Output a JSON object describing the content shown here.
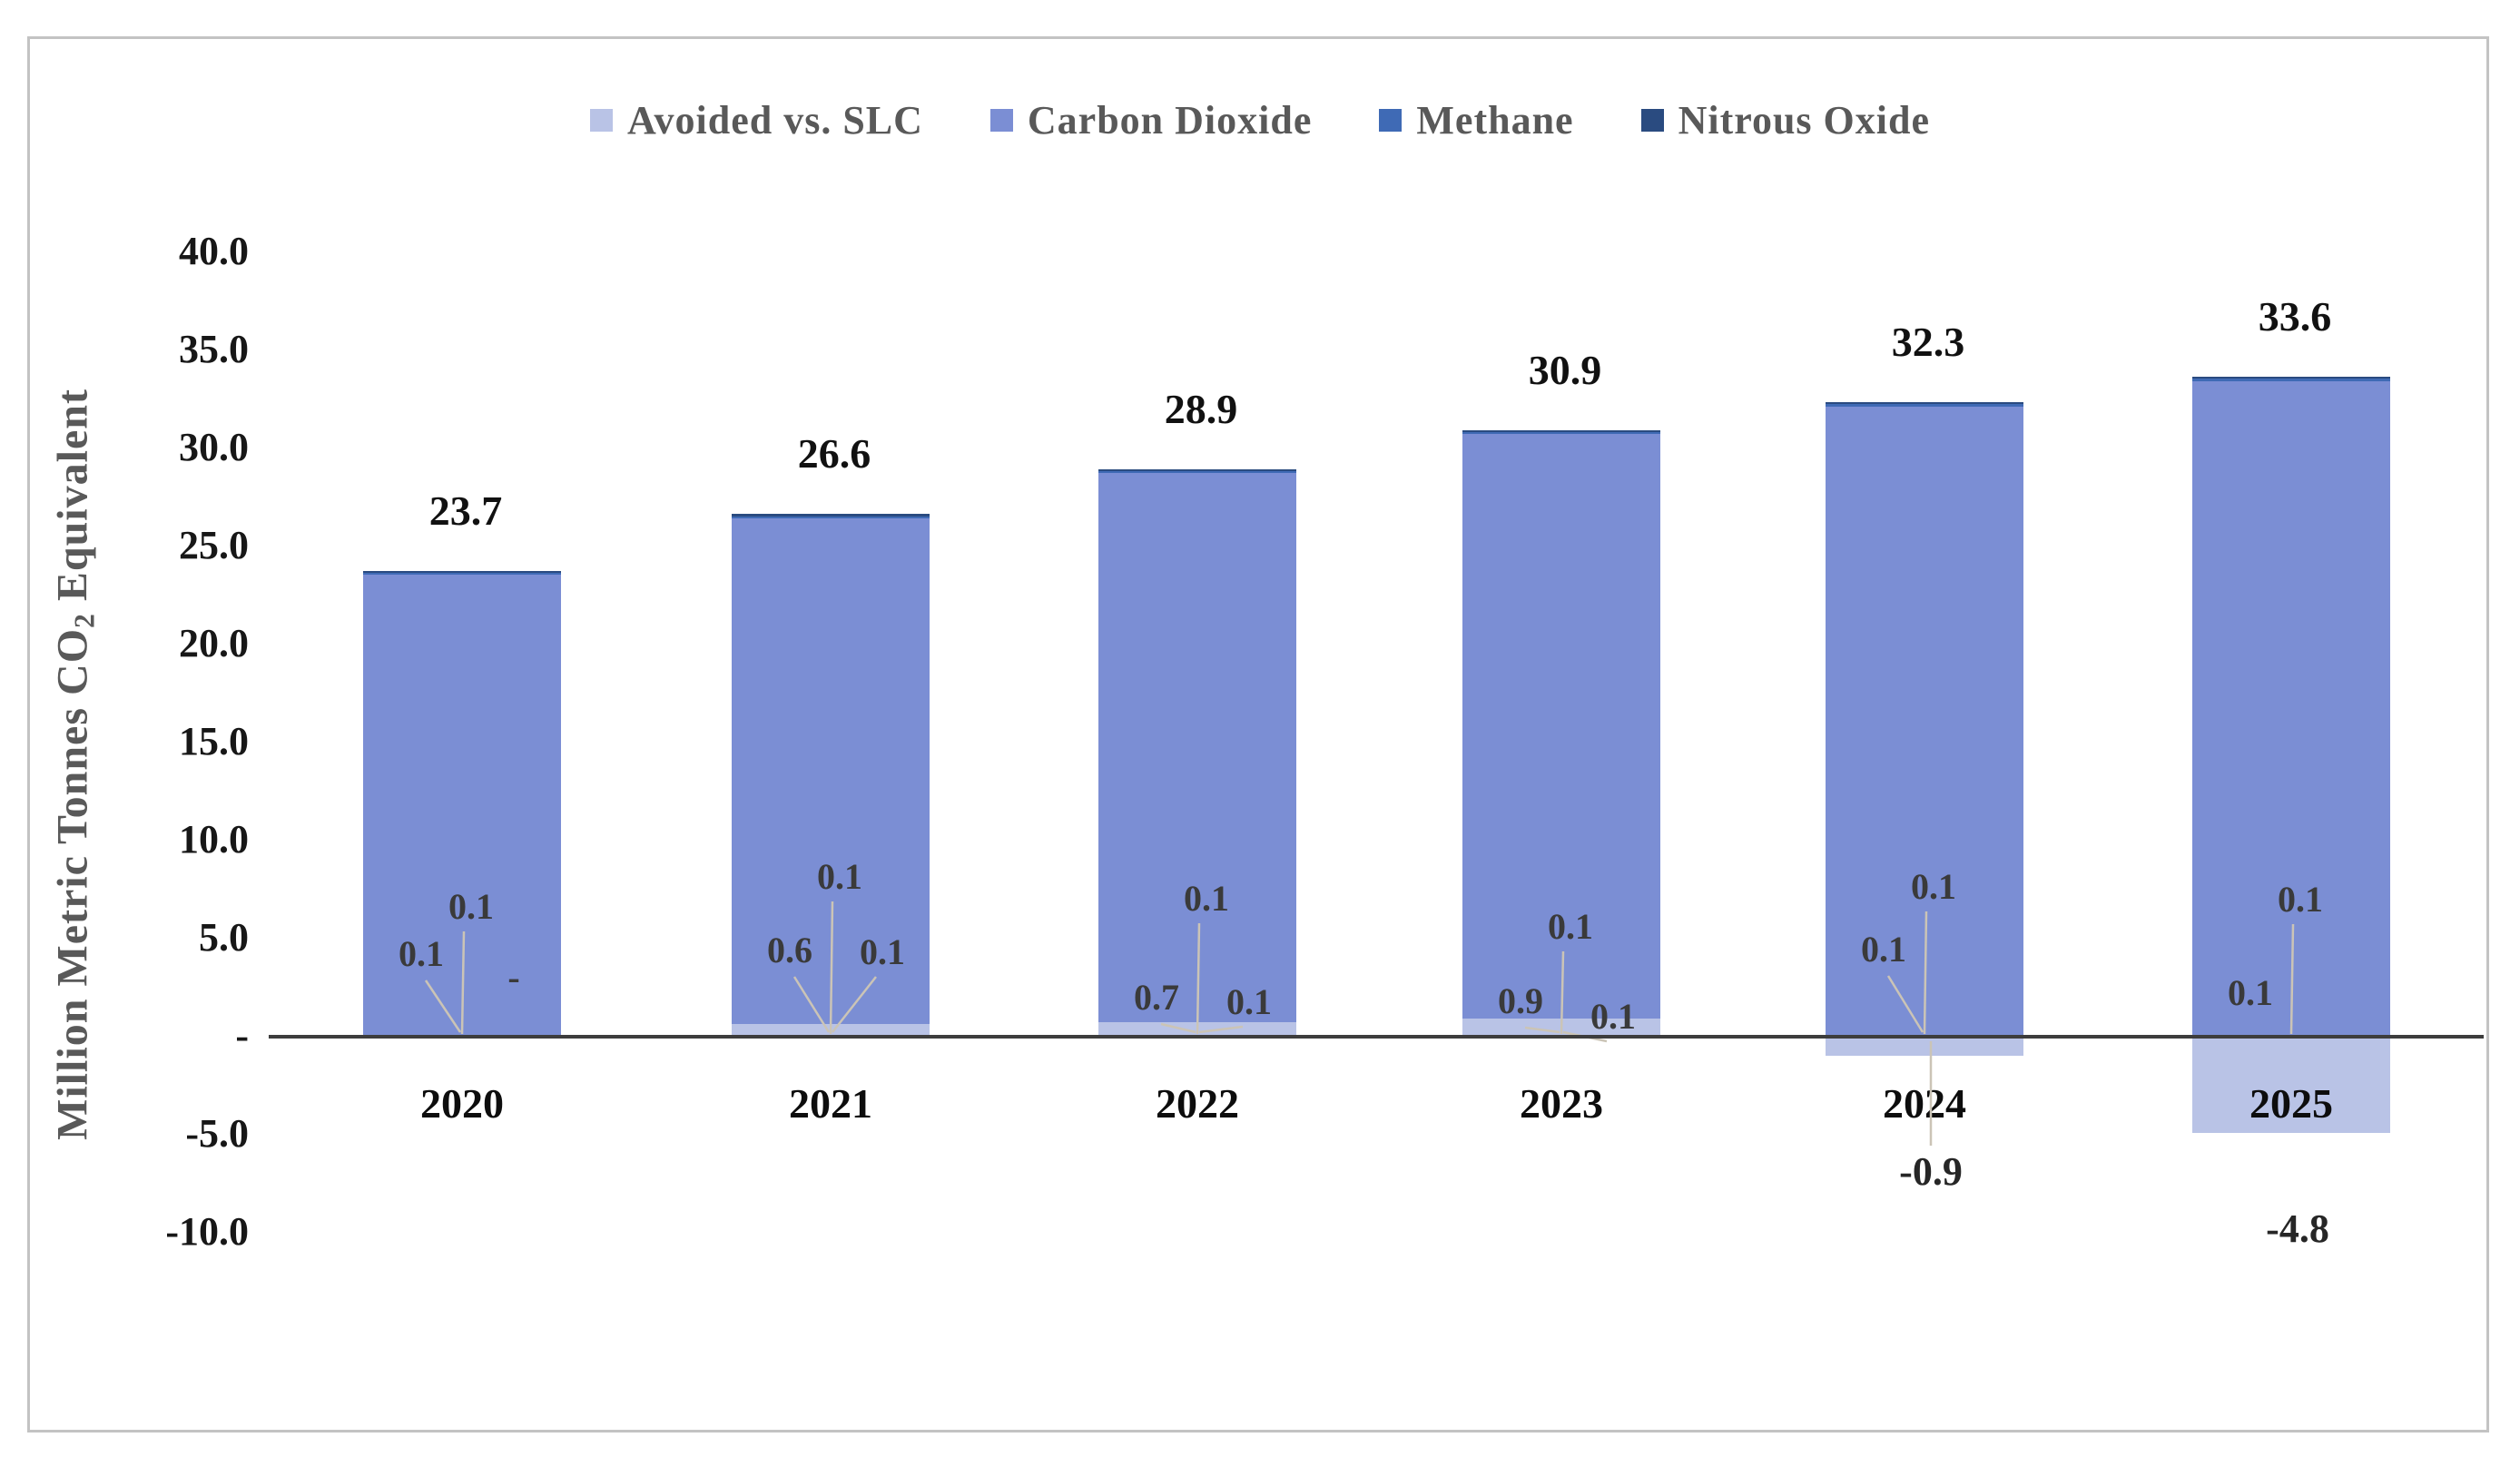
{
  "legend": {
    "items": [
      {
        "label": "Avoided vs. SLC",
        "color": "#b9c3e6"
      },
      {
        "label": "Carbon Dioxide",
        "color": "#7b8ed4"
      },
      {
        "label": "Methane",
        "color": "#3f6ab5"
      },
      {
        "label": "Nitrous Oxide",
        "color": "#2a4b80"
      }
    ]
  },
  "y_axis": {
    "title_pre": "Million Metric Tonnes CO",
    "title_sub": "2",
    "title_post": " Equivalent",
    "tick_labels": [
      "40.0",
      "35.0",
      "30.0",
      "25.0",
      "20.0",
      "15.0",
      "10.0",
      "5.0",
      "-",
      "-5.0",
      "-10.0"
    ],
    "tick_values": [
      40,
      35,
      30,
      25,
      20,
      15,
      10,
      5,
      0,
      -5,
      -10
    ]
  },
  "chart_data": {
    "type": "bar",
    "stacked": true,
    "title": "",
    "xlabel": "",
    "ylabel": "Million Metric Tonnes CO2 Equivalent",
    "ylim": [
      -10,
      40
    ],
    "ytick_step": 5,
    "grid": false,
    "legend_position": "top",
    "categories": [
      "2020",
      "2021",
      "2022",
      "2023",
      "2024",
      "2025"
    ],
    "totals": [
      23.7,
      26.6,
      28.9,
      30.9,
      32.3,
      33.6
    ],
    "totals_labels": [
      "23.7",
      "26.6",
      "28.9",
      "30.9",
      "32.3",
      "33.6"
    ],
    "series": [
      {
        "name": "Avoided vs. SLC",
        "color": "#b9c3e6",
        "values": [
          0,
          0.6,
          0.7,
          0.9,
          -0.9,
          -4.8
        ],
        "labels": [
          "-",
          "0.6",
          "0.7",
          "0.9",
          "-0.9",
          "-4.8"
        ]
      },
      {
        "name": "Carbon Dioxide",
        "color": "#7b8ed4",
        "values": [
          23.5,
          25.8,
          28.0,
          29.8,
          32.1,
          33.4
        ]
      },
      {
        "name": "Methane",
        "color": "#3f6ab5",
        "values": [
          0.1,
          0.1,
          0.1,
          0.1,
          0.1,
          0.1
        ],
        "labels": [
          "0.1",
          "0.1",
          "0.1",
          "0.1",
          "0.1",
          "0.1"
        ]
      },
      {
        "name": "Nitrous Oxide",
        "color": "#2a4b80",
        "values": [
          0.1,
          0.1,
          0.1,
          0.1,
          0.1,
          0.1
        ],
        "labels": [
          "0.1",
          "0.1",
          "0.1",
          "0.1",
          "0.1",
          "0.1"
        ]
      }
    ],
    "callouts": [
      {
        "year": "2020",
        "top": "0.1",
        "left": "0.1",
        "right": "-"
      },
      {
        "year": "2021",
        "top": "0.1",
        "left": "0.6",
        "right": "0.1"
      },
      {
        "year": "2022",
        "top": "0.1",
        "left": "0.7",
        "right": "0.1"
      },
      {
        "year": "2023",
        "top": "0.1",
        "left": "0.9",
        "right": "0.1"
      },
      {
        "year": "2024",
        "top": "0.1",
        "left": "0.1",
        "below": "-0.9"
      },
      {
        "year": "2025",
        "top": "0.1",
        "left": "0.1",
        "below": "-4.8"
      }
    ]
  }
}
